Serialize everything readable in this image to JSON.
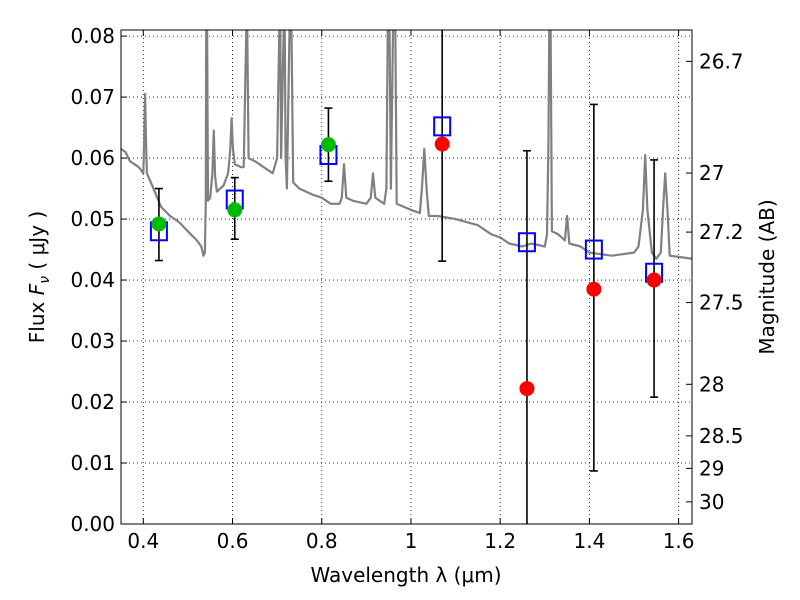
{
  "chart_data": {
    "type": "scatter",
    "xlabel": "Wavelength  λ (μm)",
    "ylabel": "Flux  F_ν  ( μJy )",
    "ylabel_parts": {
      "prefix": "Flux  ",
      "symbol": "F",
      "subscript": "ν",
      "suffix": "  ( μJy )"
    },
    "y2label": "Magnitude (AB)",
    "xlim": [
      0.35,
      1.63
    ],
    "ylim": [
      0.0,
      0.081
    ],
    "grid": true,
    "x_ticks": [
      0.4,
      0.6,
      0.8,
      1.0,
      1.2,
      1.4,
      1.6
    ],
    "x_tick_labels": [
      "0.4",
      "0.6",
      "0.8",
      "1",
      "1.2",
      "1.4",
      "1.6"
    ],
    "y_ticks": [
      0.0,
      0.01,
      0.02,
      0.03,
      0.04,
      0.05,
      0.06,
      0.07,
      0.08
    ],
    "y_tick_labels": [
      "0.00",
      "0.01",
      "0.02",
      "0.03",
      "0.04",
      "0.05",
      "0.06",
      "0.07",
      "0.08"
    ],
    "y2_ticks": [
      {
        "mag": 26.7,
        "label": "26.7"
      },
      {
        "mag": 27.0,
        "label": "27"
      },
      {
        "mag": 27.2,
        "label": "27.2"
      },
      {
        "mag": 27.5,
        "label": "27.5"
      },
      {
        "mag": 28.0,
        "label": "28"
      },
      {
        "mag": 28.5,
        "label": "28.5"
      },
      {
        "mag": 29.0,
        "label": "29"
      },
      {
        "mag": 30.0,
        "label": "30"
      }
    ],
    "colors": {
      "template": "#808080",
      "model_box": "#0000ff",
      "optical_points": "#00bb00",
      "nir_points": "#ff0000",
      "errorbar": "#000000",
      "grid": "#000000"
    },
    "series": [
      {
        "kind": "line",
        "color": "#808080",
        "points": [
          [
            0.35,
            0.0615
          ],
          [
            0.36,
            0.061
          ],
          [
            0.37,
            0.0595
          ],
          [
            0.38,
            0.059
          ],
          [
            0.39,
            0.0585
          ],
          [
            0.395,
            0.058
          ],
          [
            0.4,
            0.0575
          ],
          [
            0.402,
            0.063
          ],
          [
            0.404,
            0.0705
          ],
          [
            0.406,
            0.063
          ],
          [
            0.408,
            0.0575
          ],
          [
            0.42,
            0.0555
          ],
          [
            0.44,
            0.052
          ],
          [
            0.46,
            0.0505
          ],
          [
            0.48,
            0.0495
          ],
          [
            0.5,
            0.048
          ],
          [
            0.52,
            0.0465
          ],
          [
            0.53,
            0.0455
          ],
          [
            0.535,
            0.044
          ],
          [
            0.538,
            0.0445
          ],
          [
            0.54,
            0.053
          ],
          [
            0.541,
            0.082
          ],
          [
            0.543,
            0.082
          ],
          [
            0.545,
            0.053
          ],
          [
            0.55,
            0.0535
          ],
          [
            0.555,
            0.0575
          ],
          [
            0.558,
            0.0645
          ],
          [
            0.561,
            0.057
          ],
          [
            0.565,
            0.0545
          ],
          [
            0.58,
            0.0555
          ],
          [
            0.59,
            0.0575
          ],
          [
            0.595,
            0.0615
          ],
          [
            0.598,
            0.0665
          ],
          [
            0.601,
            0.0615
          ],
          [
            0.605,
            0.059
          ],
          [
            0.62,
            0.0585
          ],
          [
            0.625,
            0.0585
          ],
          [
            0.628,
            0.07
          ],
          [
            0.631,
            0.082
          ],
          [
            0.633,
            0.082
          ],
          [
            0.636,
            0.06
          ],
          [
            0.65,
            0.0595
          ],
          [
            0.67,
            0.0585
          ],
          [
            0.69,
            0.0575
          ],
          [
            0.7,
            0.06
          ],
          [
            0.705,
            0.082
          ],
          [
            0.707,
            0.082
          ],
          [
            0.709,
            0.06
          ],
          [
            0.715,
            0.082
          ],
          [
            0.717,
            0.082
          ],
          [
            0.719,
            0.06
          ],
          [
            0.722,
            0.055
          ],
          [
            0.728,
            0.082
          ],
          [
            0.732,
            0.082
          ],
          [
            0.736,
            0.056
          ],
          [
            0.75,
            0.055
          ],
          [
            0.78,
            0.054
          ],
          [
            0.8,
            0.0535
          ],
          [
            0.82,
            0.0525
          ],
          [
            0.84,
            0.0525
          ],
          [
            0.845,
            0.0535
          ],
          [
            0.85,
            0.059
          ],
          [
            0.855,
            0.0535
          ],
          [
            0.87,
            0.053
          ],
          [
            0.9,
            0.0525
          ],
          [
            0.91,
            0.0535
          ],
          [
            0.915,
            0.0575
          ],
          [
            0.92,
            0.0535
          ],
          [
            0.94,
            0.0525
          ],
          [
            0.945,
            0.055
          ],
          [
            0.948,
            0.082
          ],
          [
            0.952,
            0.082
          ],
          [
            0.955,
            0.055
          ],
          [
            0.96,
            0.082
          ],
          [
            0.965,
            0.082
          ],
          [
            0.968,
            0.0525
          ],
          [
            1.0,
            0.0515
          ],
          [
            1.02,
            0.051
          ],
          [
            1.025,
            0.0555
          ],
          [
            1.03,
            0.0615
          ],
          [
            1.035,
            0.055
          ],
          [
            1.04,
            0.0505
          ],
          [
            1.06,
            0.0505
          ],
          [
            1.1,
            0.05
          ],
          [
            1.15,
            0.049
          ],
          [
            1.18,
            0.0475
          ],
          [
            1.2,
            0.047
          ],
          [
            1.22,
            0.046
          ],
          [
            1.25,
            0.0455
          ],
          [
            1.27,
            0.046
          ],
          [
            1.3,
            0.0455
          ],
          [
            1.305,
            0.0475
          ],
          [
            1.308,
            0.062
          ],
          [
            1.31,
            0.082
          ],
          [
            1.313,
            0.082
          ],
          [
            1.316,
            0.048
          ],
          [
            1.33,
            0.0475
          ],
          [
            1.345,
            0.0465
          ],
          [
            1.35,
            0.0505
          ],
          [
            1.355,
            0.046
          ],
          [
            1.38,
            0.0455
          ],
          [
            1.4,
            0.0445
          ],
          [
            1.45,
            0.044
          ],
          [
            1.5,
            0.0445
          ],
          [
            1.51,
            0.0455
          ],
          [
            1.52,
            0.0515
          ],
          [
            1.525,
            0.0605
          ],
          [
            1.53,
            0.0515
          ],
          [
            1.54,
            0.0445
          ],
          [
            1.55,
            0.0435
          ],
          [
            1.56,
            0.0445
          ],
          [
            1.565,
            0.0515
          ],
          [
            1.57,
            0.0575
          ],
          [
            1.575,
            0.0515
          ],
          [
            1.58,
            0.044
          ],
          [
            1.6,
            0.0438
          ],
          [
            1.63,
            0.0435
          ]
        ]
      },
      {
        "kind": "box",
        "name": "",
        "color": "#0000ff",
        "x": [
          0.435,
          0.605,
          0.815,
          1.07,
          1.26,
          1.41,
          1.545
        ],
        "y": [
          0.048,
          0.0532,
          0.0605,
          0.0652,
          0.0462,
          0.045,
          0.0412
        ]
      },
      {
        "kind": "point",
        "name": "",
        "color": "#00bb00",
        "x": [
          0.435,
          0.605,
          0.815
        ],
        "y": [
          0.0492,
          0.0515,
          0.0622
        ]
      },
      {
        "kind": "point",
        "name": "",
        "color": "#ff0000",
        "x": [
          1.07,
          1.26,
          1.41,
          1.545
        ],
        "y": [
          0.0623,
          0.0222,
          0.0385,
          0.04
        ]
      }
    ],
    "errorbars": [
      {
        "x": 0.435,
        "low": 0.0432,
        "high": 0.055
      },
      {
        "x": 0.605,
        "low": 0.0467,
        "high": 0.0568
      },
      {
        "x": 0.815,
        "low": 0.0562,
        "high": 0.0682
      },
      {
        "x": 1.07,
        "low": 0.0431,
        "high": 0.081
      },
      {
        "x": 1.26,
        "low": 0.0,
        "high": 0.0612
      },
      {
        "x": 1.41,
        "low": 0.0087,
        "high": 0.0688
      },
      {
        "x": 1.545,
        "low": 0.0208,
        "high": 0.0597
      }
    ]
  }
}
